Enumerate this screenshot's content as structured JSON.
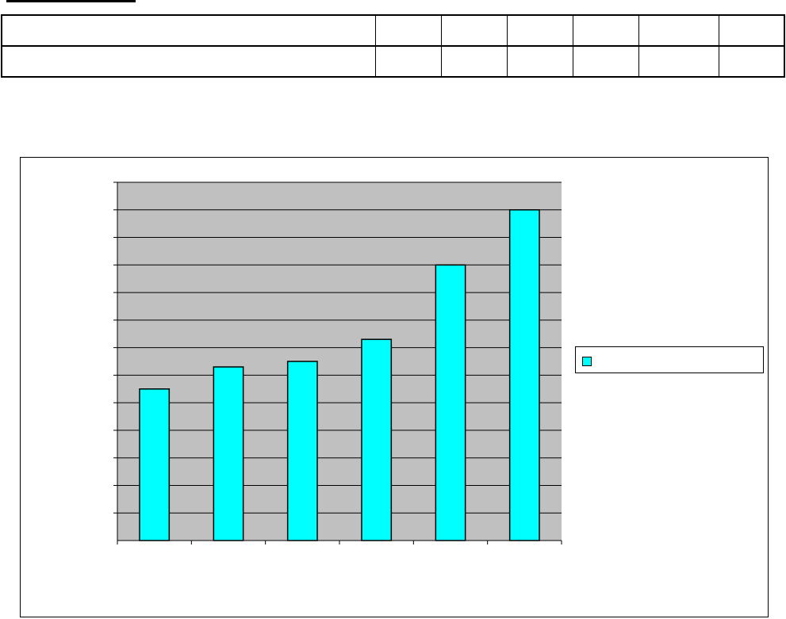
{
  "table": {
    "header_row": [
      "",
      "",
      "",
      "",
      "",
      "",
      ""
    ],
    "value_row": [
      "",
      "",
      "",
      "",
      "",
      "",
      ""
    ]
  },
  "colors": {
    "bar": "#00ffff",
    "plot_bg": "#c0c0c0",
    "grid": "#000000"
  },
  "chart_data": {
    "type": "bar",
    "title": "",
    "xlabel": "",
    "ylabel": "",
    "categories": [
      "",
      "",
      "",
      "",
      "",
      ""
    ],
    "series": [
      {
        "name": "",
        "values": [
          5.5,
          6.3,
          6.5,
          7.3,
          10.0,
          12.0
        ]
      }
    ],
    "ylim": [
      0,
      13
    ],
    "ytick_step": 1,
    "grid": true,
    "legend_position": "right"
  }
}
